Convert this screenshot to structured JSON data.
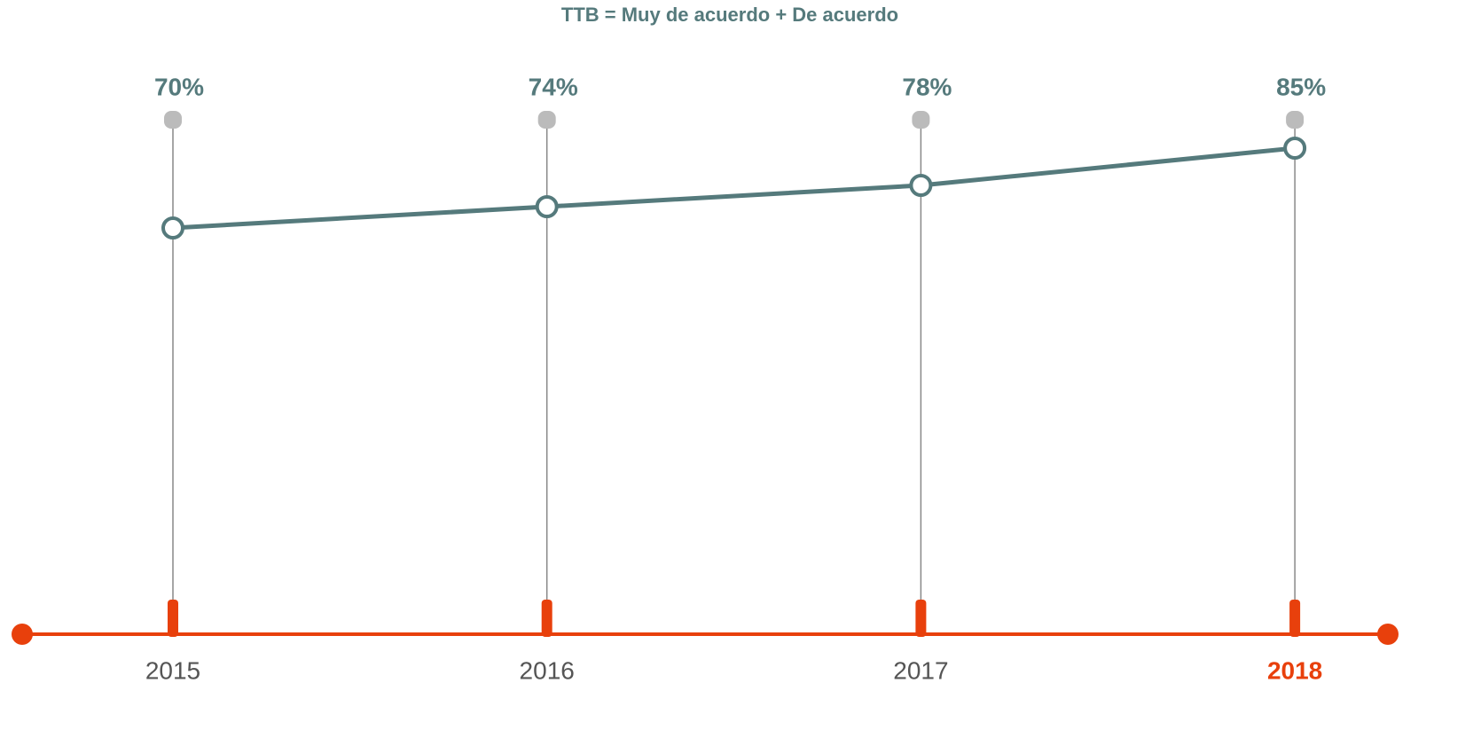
{
  "chart_data": {
    "type": "line",
    "title": "TTB = Muy de acuerdo + De acuerdo",
    "categories": [
      "2015",
      "2016",
      "2017",
      "2018"
    ],
    "series": [
      {
        "color": "#557a7c",
        "values": [
          70,
          74,
          78,
          85
        ],
        "value_labels": [
          "70%",
          "74%",
          "78%",
          "85%"
        ]
      }
    ],
    "ylim": [
      0,
      100
    ],
    "axis_color": "#e8400c",
    "highlight_index": 3,
    "highlight_color": "#e8400c"
  }
}
